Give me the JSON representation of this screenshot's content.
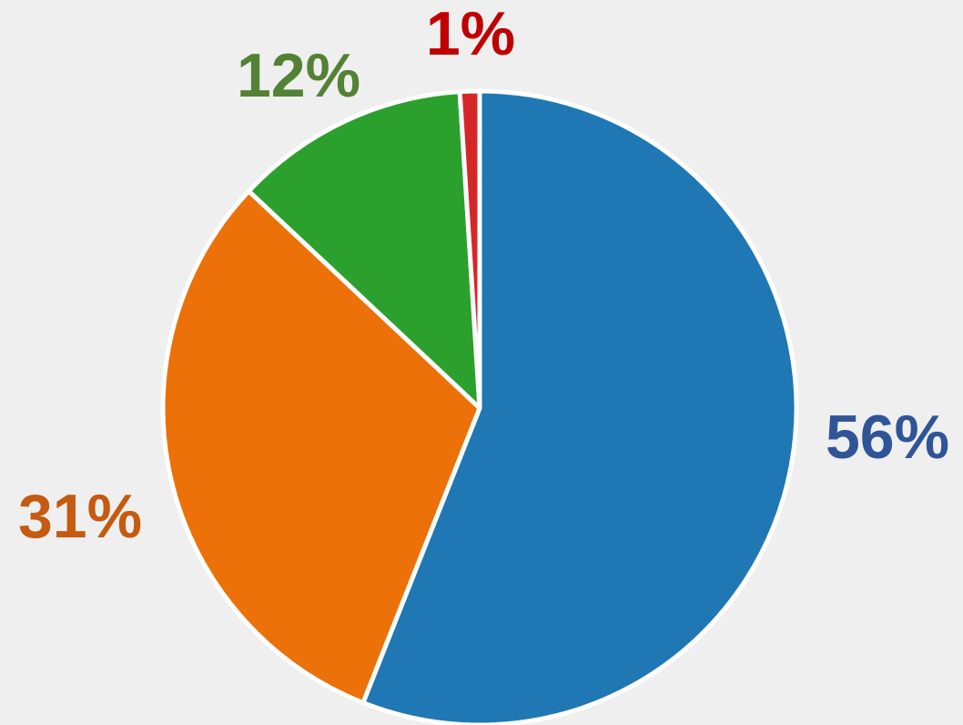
{
  "chart_data": {
    "type": "pie",
    "values": [
      56,
      31,
      12,
      1
    ],
    "value_labels": [
      "56%",
      "31%",
      "12%",
      "1%"
    ],
    "colors": [
      "#1f77b4",
      "#ec7108",
      "#2ca02c",
      "#d62728"
    ],
    "label_colors": [
      "#2f5597",
      "#c55a11",
      "#538135",
      "#c00000"
    ]
  }
}
